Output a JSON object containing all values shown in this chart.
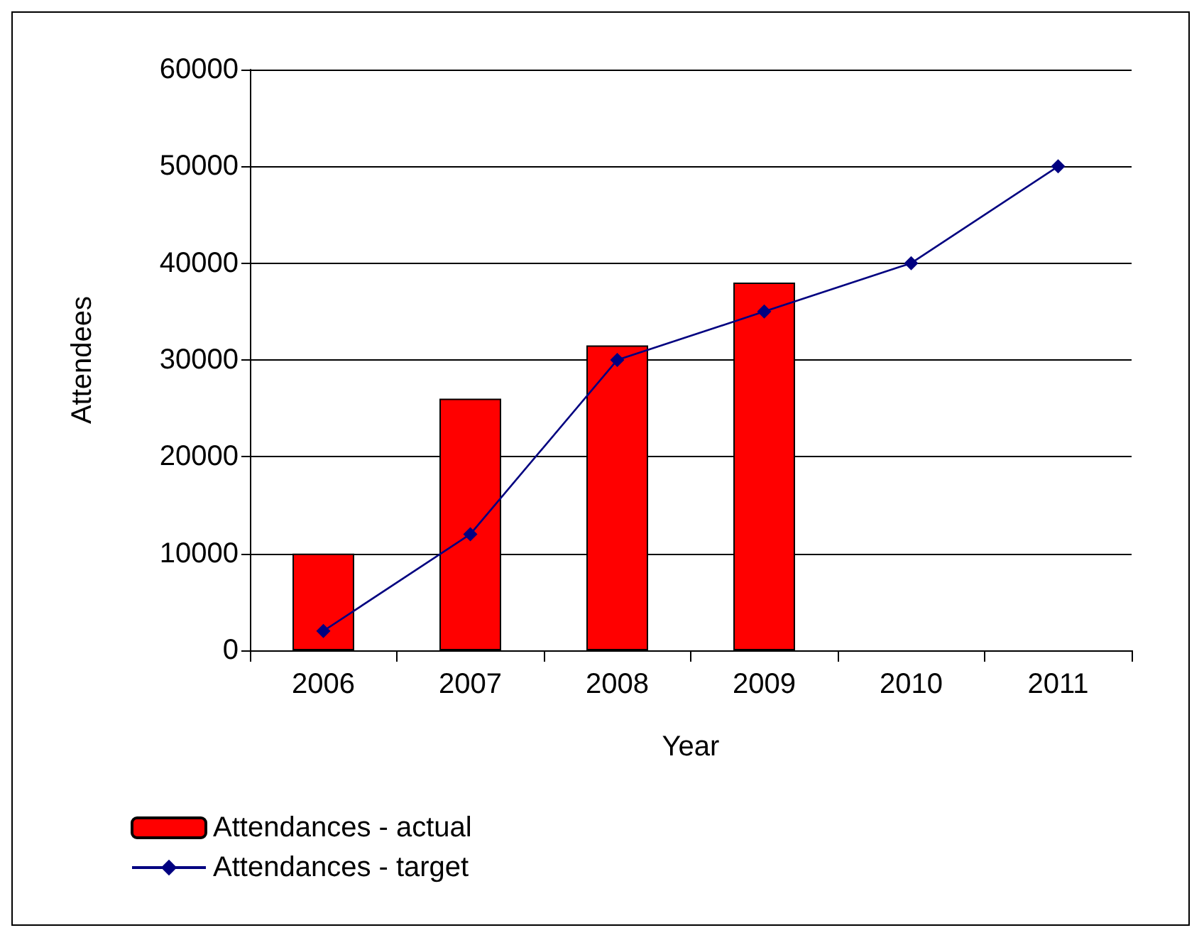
{
  "chart_data": {
    "type": "bar",
    "xlabel": "Year",
    "ylabel": "Attendees",
    "categories": [
      "2006",
      "2007",
      "2008",
      "2009",
      "2010",
      "2011"
    ],
    "series": [
      {
        "name": "Attendances - actual",
        "color": "#ff0000",
        "values": [
          10000,
          26000,
          31500,
          38000,
          null,
          null
        ]
      },
      {
        "name": "Attendances - target",
        "type": "line",
        "color": "#000080",
        "values": [
          2000,
          12000,
          30000,
          35000,
          40000,
          50000
        ]
      }
    ],
    "ylim": [
      0,
      60000
    ],
    "yticks": [
      0,
      10000,
      20000,
      30000,
      40000,
      50000,
      60000
    ],
    "grid": "y",
    "legend": "bottom left",
    "marker": "diamond",
    "line_style": "solid"
  }
}
